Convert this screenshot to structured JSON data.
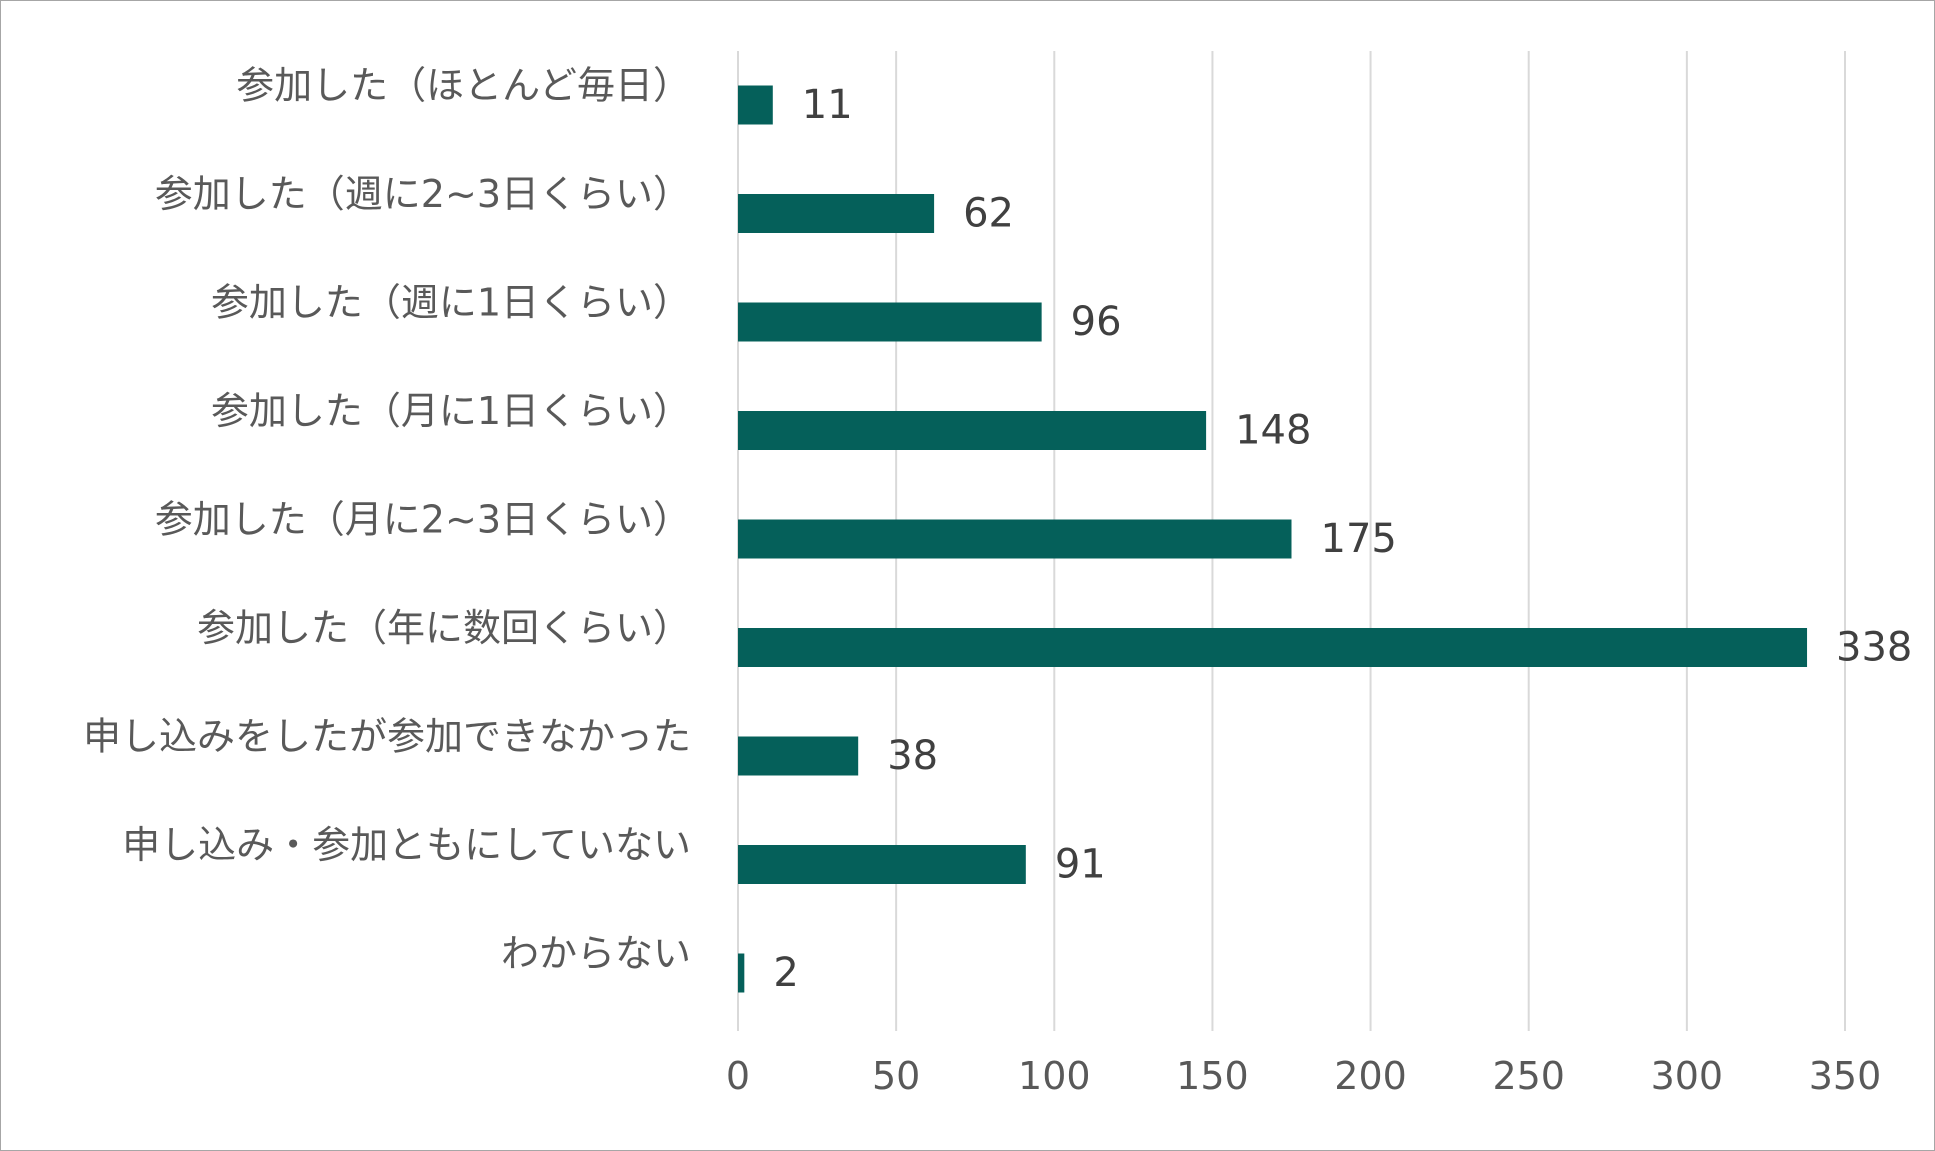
{
  "chart_data": {
    "type": "bar",
    "orientation": "horizontal",
    "title": "",
    "xlabel": "",
    "ylabel": "",
    "categories": [
      "参加した（ほとんど毎日）",
      "参加した（週に2~3日くらい）",
      "参加した（週に1日くらい）",
      "参加した（月に1日くらい）",
      "参加した（月に2~3日くらい）",
      "参加した（年に数回くらい）",
      "申し込みをしたが参加できなかった",
      "申し込み・参加ともにしていない",
      "わからない"
    ],
    "values": [
      11,
      62,
      96,
      148,
      175,
      338,
      38,
      91,
      2
    ],
    "xlim": [
      0,
      350
    ],
    "xticks": [
      0,
      50,
      100,
      150,
      200,
      250,
      300,
      350
    ],
    "tick_labels": [
      "0",
      "50",
      "100",
      "150",
      "200",
      "250",
      "300",
      "350"
    ],
    "data_labels": [
      "11",
      "62",
      "96",
      "148",
      "175",
      "338",
      "38",
      "91",
      "2"
    ],
    "grid": true,
    "legend": "none",
    "bar_color": "#05605a",
    "grid_color": "#d9d9d9",
    "label_color": "#595959",
    "data_label_color": "#404040"
  }
}
